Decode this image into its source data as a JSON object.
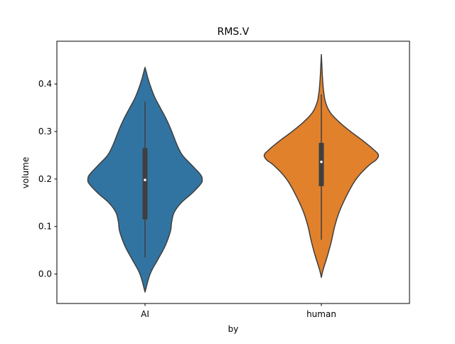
{
  "chart_data": {
    "type": "violin",
    "title": "RMS.V",
    "xlabel": "by",
    "ylabel": "volume",
    "categories": [
      "AI",
      "human"
    ],
    "ylim": [
      -0.062,
      0.49
    ],
    "yticks": [
      0.0,
      0.1,
      0.2,
      0.3,
      0.4
    ],
    "ytick_labels": [
      "0.0",
      "0.1",
      "0.2",
      "0.3",
      "0.4"
    ],
    "grid": false,
    "series": [
      {
        "category": "AI",
        "color": "#3274a1",
        "min": 0.035,
        "q1": 0.115,
        "median": 0.198,
        "q3": 0.265,
        "max": 0.363,
        "kde_extent": [
          -0.038,
          0.435
        ],
        "density_profile": [
          [
            -0.038,
            0.0
          ],
          [
            0.0,
            0.08
          ],
          [
            0.03,
            0.2
          ],
          [
            0.06,
            0.32
          ],
          [
            0.09,
            0.4
          ],
          [
            0.11,
            0.42
          ],
          [
            0.13,
            0.46
          ],
          [
            0.15,
            0.57
          ],
          [
            0.17,
            0.74
          ],
          [
            0.19,
            0.88
          ],
          [
            0.2,
            0.9
          ],
          [
            0.21,
            0.87
          ],
          [
            0.23,
            0.73
          ],
          [
            0.25,
            0.59
          ],
          [
            0.27,
            0.51
          ],
          [
            0.29,
            0.45
          ],
          [
            0.31,
            0.39
          ],
          [
            0.33,
            0.32
          ],
          [
            0.35,
            0.24
          ],
          [
            0.37,
            0.16
          ],
          [
            0.39,
            0.1
          ],
          [
            0.41,
            0.05
          ],
          [
            0.425,
            0.02
          ],
          [
            0.435,
            0.0
          ]
        ]
      },
      {
        "category": "human",
        "color": "#e1812c",
        "min": 0.072,
        "q1": 0.185,
        "median": 0.236,
        "q3": 0.276,
        "max": 0.378,
        "kde_extent": [
          -0.007,
          0.462
        ],
        "density_profile": [
          [
            -0.007,
            0.0
          ],
          [
            0.01,
            0.03
          ],
          [
            0.04,
            0.1
          ],
          [
            0.07,
            0.16
          ],
          [
            0.1,
            0.21
          ],
          [
            0.13,
            0.28
          ],
          [
            0.16,
            0.38
          ],
          [
            0.19,
            0.5
          ],
          [
            0.21,
            0.61
          ],
          [
            0.23,
            0.76
          ],
          [
            0.24,
            0.86
          ],
          [
            0.25,
            0.9
          ],
          [
            0.26,
            0.84
          ],
          [
            0.28,
            0.66
          ],
          [
            0.3,
            0.46
          ],
          [
            0.32,
            0.28
          ],
          [
            0.34,
            0.14
          ],
          [
            0.36,
            0.07
          ],
          [
            0.38,
            0.04
          ],
          [
            0.4,
            0.025
          ],
          [
            0.42,
            0.015
          ],
          [
            0.44,
            0.008
          ],
          [
            0.462,
            0.0
          ]
        ]
      }
    ]
  }
}
